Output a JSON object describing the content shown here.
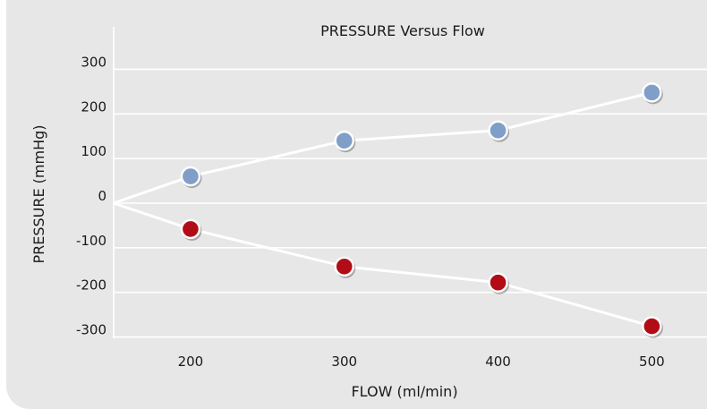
{
  "chart_data": {
    "type": "line",
    "title": "PRESSURE Versus Flow",
    "xlabel": "FLOW (ml/min)",
    "ylabel": "PRESSURE (mmHg)",
    "x_ticks": [
      200,
      300,
      400,
      500
    ],
    "y_ticks": [
      300,
      200,
      100,
      0,
      -100,
      -200,
      -300
    ],
    "ylim": [
      -310,
      390
    ],
    "grid": true,
    "colors": {
      "background": "#e7e7e8",
      "grid": "#ffffff",
      "line": "#ffffff",
      "axis": "#ffffff"
    },
    "origin": [
      150,
      0
    ],
    "series": [
      {
        "color": "#7f9fc9",
        "x": [
          200,
          300,
          400,
          500
        ],
        "y": [
          60,
          140,
          163,
          248
        ]
      },
      {
        "color": "#b20d16",
        "x": [
          200,
          300,
          400,
          500
        ],
        "y": [
          -58,
          -142,
          -178,
          -276
        ]
      }
    ]
  }
}
